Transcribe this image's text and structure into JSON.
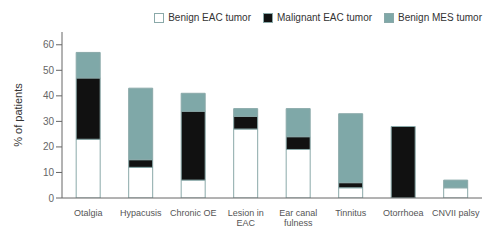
{
  "chart_data": {
    "type": "bar",
    "ylabel": "% of patients",
    "categories": [
      "Otalgia",
      "Hypacusis",
      "Chronic OE",
      "Lesion in\nEAC",
      "Ear canal\nfulness",
      "Tinnitus",
      "Otorrhoea",
      "CNVII palsy"
    ],
    "series": [
      {
        "name": "Benign EAC tumor",
        "color": "#ffffff",
        "values": [
          23,
          12,
          7,
          27,
          19,
          4,
          0,
          4
        ]
      },
      {
        "name": "Malignant EAC tumor",
        "color": "#111111",
        "values": [
          24,
          3,
          27,
          5,
          5,
          2,
          28,
          0
        ]
      },
      {
        "name": "Benign MES tumor",
        "color": "#7fa8a8",
        "values": [
          10,
          28,
          7,
          3,
          11,
          27,
          0,
          3
        ]
      }
    ],
    "ylim": [
      0,
      65
    ],
    "yticks": [
      0,
      10,
      20,
      30,
      40,
      50,
      60
    ],
    "stacked": true,
    "grid": false,
    "legend": "upper right"
  }
}
